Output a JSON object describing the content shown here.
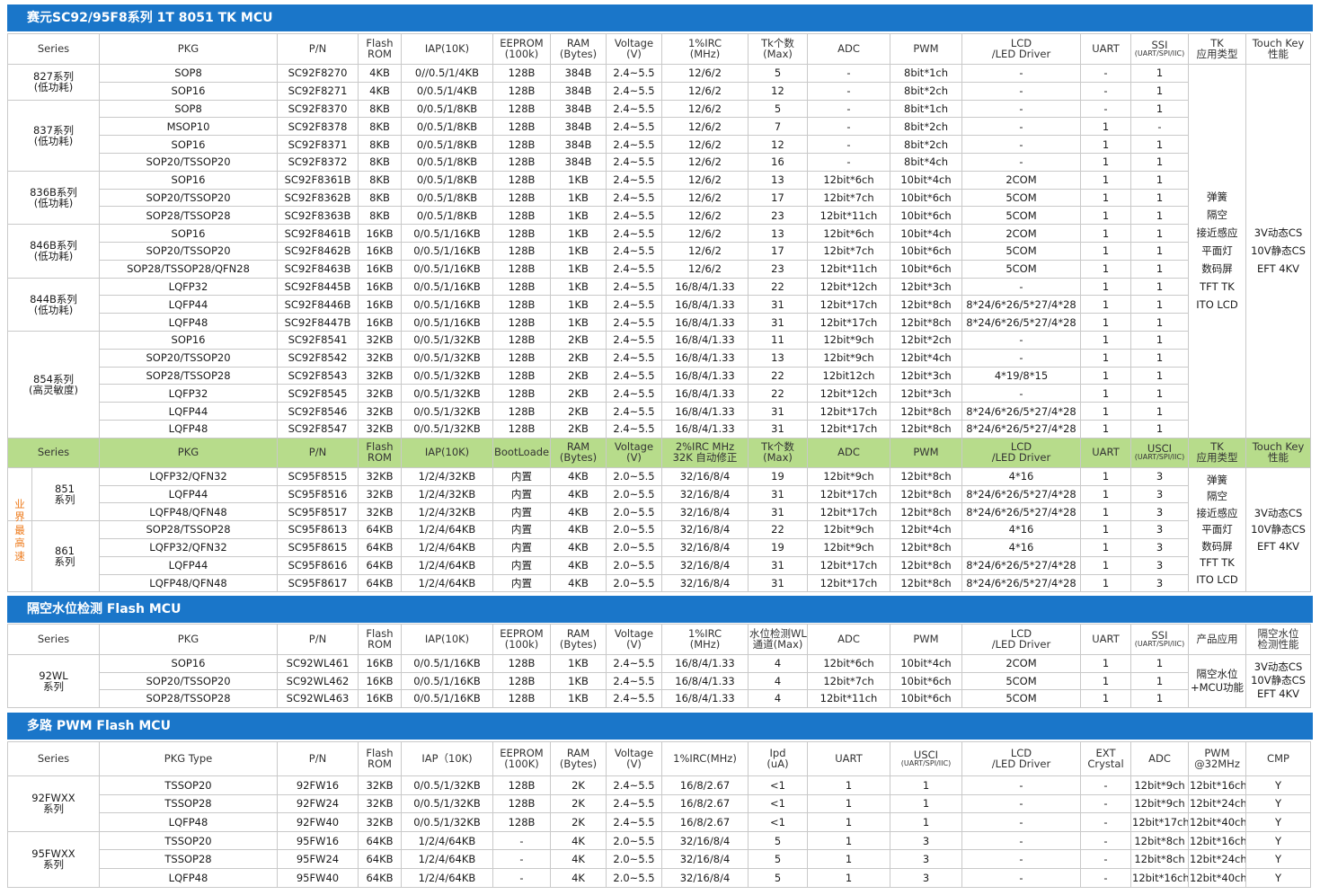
{
  "section1": {
    "title": "赛元SC92/95F8系列 1T 8051 TK MCU",
    "header": [
      "Series",
      "PKG",
      "P/N",
      "Flash|ROM",
      "IAP(10K)",
      "EEPROM|(100k)",
      "RAM|(Bytes)",
      "Voltage|(V)",
      "1%IRC|(MHz)",
      "Tk个数|(Max)",
      "ADC",
      "PWM",
      "LCD|/LED Driver",
      "UART",
      "SSI|(UART/SPI/IIC)",
      "TK|应用类型",
      "Touch Key|性能"
    ],
    "groups": [
      {
        "name": "827系列",
        "sub": "(低功耗)",
        "color": "r",
        "rows": [
          [
            "SOP8",
            "SC92F8270",
            "4KB",
            "0//0.5/1/4KB",
            "128B",
            "384B",
            "2.4~5.5",
            "12/6/2",
            "5",
            "-",
            "8bit*1ch",
            "-",
            "-",
            "1"
          ],
          [
            "SOP16",
            "SC92F8271",
            "4KB",
            "0/0.5/1/4KB",
            "128B",
            "384B",
            "2.4~5.5",
            "12/6/2",
            "12",
            "-",
            "8bit*2ch",
            "-",
            "-",
            "1"
          ]
        ]
      },
      {
        "name": "837系列",
        "sub": "(低功耗)",
        "color": "b",
        "rows": [
          [
            "SOP8",
            "SC92F8370",
            "8KB",
            "0/0.5/1/8KB",
            "128B",
            "384B",
            "2.4~5.5",
            "12/6/2",
            "5",
            "-",
            "8bit*1ch",
            "-",
            "-",
            "1"
          ],
          [
            "MSOP10",
            "SC92F8378",
            "8KB",
            "0/0.5/1/8KB",
            "128B",
            "384B",
            "2.4~5.5",
            "12/6/2",
            "7",
            "-",
            "8bit*2ch",
            "-",
            "1",
            "-"
          ],
          [
            "SOP16",
            "SC92F8371",
            "8KB",
            "0/0.5/1/8KB",
            "128B",
            "384B",
            "2.4~5.5",
            "12/6/2",
            "12",
            "-",
            "8bit*2ch",
            "-",
            "1",
            "1"
          ],
          [
            "SOP20/TSSOP20",
            "SC92F8372",
            "8KB",
            "0/0.5/1/8KB",
            "128B",
            "384B",
            "2.4~5.5",
            "12/6/2",
            "16",
            "-",
            "8bit*4ch",
            "-",
            "1",
            "1"
          ]
        ]
      },
      {
        "name": "836B系列",
        "sub": "(低功耗)",
        "color": "b",
        "rows": [
          [
            "SOP16",
            "SC92F8361B",
            "8KB",
            "0/0.5/1/8KB",
            "128B",
            "1KB",
            "2.4~5.5",
            "12/6/2",
            "13",
            "12bit*6ch",
            "10bit*4ch",
            "2COM",
            "1",
            "1"
          ],
          [
            "SOP20/TSSOP20",
            "SC92F8362B",
            "8KB",
            "0/0.5/1/8KB",
            "128B",
            "1KB",
            "2.4~5.5",
            "12/6/2",
            "17",
            "12bit*7ch",
            "10bit*6ch",
            "5COM",
            "1",
            "1"
          ],
          [
            "SOP28/TSSOP28",
            "SC92F8363B",
            "8KB",
            "0/0.5/1/8KB",
            "128B",
            "1KB",
            "2.4~5.5",
            "12/6/2",
            "23",
            "12bit*11ch",
            "10bit*6ch",
            "5COM",
            "1",
            "1"
          ]
        ]
      },
      {
        "name": "846B系列",
        "sub": "(低功耗)",
        "color": "g",
        "rows": [
          [
            "SOP16",
            "SC92F8461B",
            "16KB",
            "0/0.5/1/16KB",
            "128B",
            "1KB",
            "2.4~5.5",
            "12/6/2",
            "13",
            "12bit*6ch",
            "10bit*4ch",
            "2COM",
            "1",
            "1"
          ],
          [
            "SOP20/TSSOP20",
            "SC92F8462B",
            "16KB",
            "0/0.5/1/16KB",
            "128B",
            "1KB",
            "2.4~5.5",
            "12/6/2",
            "17",
            "12bit*7ch",
            "10bit*6ch",
            "5COM",
            "1",
            "1"
          ],
          [
            "SOP28/TSSOP28/QFN28",
            "SC92F8463B",
            "16KB",
            "0/0.5/1/16KB",
            "128B",
            "1KB",
            "2.4~5.5",
            "12/6/2",
            "23",
            "12bit*11ch",
            "10bit*6ch",
            "5COM",
            "1",
            "1"
          ]
        ]
      },
      {
        "name": "844B系列",
        "sub": "(低功耗)",
        "color": "g",
        "rows": [
          [
            "LQFP32",
            "SC92F8445B",
            "16KB",
            "0/0.5/1/16KB",
            "128B",
            "1KB",
            "2.4~5.5",
            "16/8/4/1.33",
            "22",
            "12bit*12ch",
            "12bit*3ch",
            "-",
            "1",
            "1"
          ],
          [
            "LQFP44",
            "SC92F8446B",
            "16KB",
            "0/0.5/1/16KB",
            "128B",
            "1KB",
            "2.4~5.5",
            "16/8/4/1.33",
            "31",
            "12bit*17ch",
            "12bit*8ch",
            "8*24/6*26/5*27/4*28",
            "1",
            "1"
          ],
          [
            "LQFP48",
            "SC92F8447B",
            "16KB",
            "0/0.5/1/16KB",
            "128B",
            "1KB",
            "2.4~5.5",
            "16/8/4/1.33",
            "31",
            "12bit*17ch",
            "12bit*8ch",
            "8*24/6*26/5*27/4*28",
            "1",
            "1"
          ]
        ]
      },
      {
        "name": "854系列",
        "sub": "(高灵敏度)",
        "color": "o",
        "rows": [
          [
            "SOP16",
            "SC92F8541",
            "32KB",
            "0/0.5/1/32KB",
            "128B",
            "2KB",
            "2.4~5.5",
            "16/8/4/1.33",
            "11",
            "12bit*9ch",
            "12bit*2ch",
            "-",
            "1",
            "1"
          ],
          [
            "SOP20/TSSOP20",
            "SC92F8542",
            "32KB",
            "0/0.5/1/32KB",
            "128B",
            "2KB",
            "2.4~5.5",
            "16/8/4/1.33",
            "13",
            "12bit*9ch",
            "12bit*4ch",
            "-",
            "1",
            "1"
          ],
          [
            "SOP28/TSSOP28",
            "SC92F8543",
            "32KB",
            "0/0.5/1/32KB",
            "128B",
            "2KB",
            "2.4~5.5",
            "16/8/4/1.33",
            "22",
            "12bit12ch",
            "12bit*3ch",
            "4*19/8*15",
            "1",
            "1"
          ],
          [
            "LQFP32",
            "SC92F8545",
            "32KB",
            "0/0.5/1/32KB",
            "128B",
            "2KB",
            "2.4~5.5",
            "16/8/4/1.33",
            "22",
            "12bit*12ch",
            "12bit*3ch",
            "-",
            "1",
            "1"
          ],
          [
            "LQFP44",
            "SC92F8546",
            "32KB",
            "0/0.5/1/32KB",
            "128B",
            "2KB",
            "2.4~5.5",
            "16/8/4/1.33",
            "31",
            "12bit*17ch",
            "12bit*8ch",
            "8*24/6*26/5*27/4*28",
            "1",
            "1"
          ],
          [
            "LQFP48",
            "SC92F8547",
            "32KB",
            "0/0.5/1/32KB",
            "128B",
            "2KB",
            "2.4~5.5",
            "16/8/4/1.33",
            "31",
            "12bit*17ch",
            "12bit*8ch",
            "8*24/6*26/5*27/4*28",
            "1",
            "1"
          ]
        ]
      }
    ],
    "tk_type": [
      "弹簧",
      "隔空",
      "接近感应",
      "平面灯",
      "数码屏",
      "TFT TK",
      "ITO LCD"
    ],
    "tk_perf": [
      "3V动态CS",
      "10V静态CS",
      "EFT 4KV"
    ]
  },
  "section2": {
    "header": [
      "Series",
      "PKG",
      "P/N",
      "Flash|ROM",
      "IAP(10K)",
      "BootLoader",
      "RAM|(Bytes)",
      "Voltage|(V)",
      "2%IRC MHz|32K 自动修正",
      "Tk个数|(Max)",
      "ADC",
      "PWM",
      "LCD|/LED Driver",
      "UART",
      "USCI|(UART/SPI/IIC)",
      "TK|应用类型",
      "Touch Key|性能"
    ],
    "side": [
      "业",
      "界",
      "最",
      "高",
      "速"
    ],
    "groups": [
      {
        "name": "851",
        "sub": "系列",
        "color": "o",
        "rows": [
          [
            "LQFP32/QFN32",
            "SC95F8515",
            "32KB",
            "1/2/4/32KB",
            "内置",
            "4KB",
            "2.0~5.5",
            "32/16/8/4",
            "19",
            "12bit*9ch",
            "12bit*8ch",
            "4*16",
            "1",
            "3"
          ],
          [
            "LQFP44",
            "SC95F8516",
            "32KB",
            "1/2/4/32KB",
            "内置",
            "4KB",
            "2.0~5.5",
            "32/16/8/4",
            "31",
            "12bit*17ch",
            "12bit*8ch",
            "8*24/6*26/5*27/4*28",
            "1",
            "3"
          ],
          [
            "LQFP48/QFN48",
            "SC95F8517",
            "32KB",
            "1/2/4/32KB",
            "内置",
            "4KB",
            "2.0~5.5",
            "32/16/8/4",
            "31",
            "12bit*17ch",
            "12bit*8ch",
            "8*24/6*26/5*27/4*28",
            "1",
            "3"
          ]
        ]
      },
      {
        "name": "861",
        "sub": "系列",
        "color": "p",
        "rows": [
          [
            "SOP28/TSSOP28",
            "SC95F8613",
            "64KB",
            "1/2/4/64KB",
            "内置",
            "4KB",
            "2.0~5.5",
            "32/16/8/4",
            "22",
            "12bit*9ch",
            "12bit*4ch",
            "4*16",
            "1",
            "3"
          ],
          [
            "LQFP32/QFN32",
            "SC95F8615",
            "64KB",
            "1/2/4/64KB",
            "内置",
            "4KB",
            "2.0~5.5",
            "32/16/8/4",
            "19",
            "12bit*9ch",
            "12bit*8ch",
            "4*16",
            "1",
            "3"
          ],
          [
            "LQFP44",
            "SC95F8616",
            "64KB",
            "1/2/4/64KB",
            "内置",
            "4KB",
            "2.0~5.5",
            "32/16/8/4",
            "31",
            "12bit*17ch",
            "12bit*8ch",
            "8*24/6*26/5*27/4*28",
            "1",
            "3"
          ],
          [
            "LQFP48/QFN48",
            "SC95F8617",
            "64KB",
            "1/2/4/64KB",
            "内置",
            "4KB",
            "2.0~5.5",
            "32/16/8/4",
            "31",
            "12bit*17ch",
            "12bit*8ch",
            "8*24/6*26/5*27/4*28",
            "1",
            "3"
          ]
        ]
      }
    ],
    "tk_type": [
      "弹簧",
      "隔空",
      "接近感应",
      "平面灯",
      "数码屏",
      "TFT TK",
      "ITO LCD"
    ],
    "tk_perf": [
      "3V动态CS",
      "10V静态CS",
      "EFT 4KV"
    ]
  },
  "section3": {
    "title": "隔空水位检测 Flash MCU",
    "header": [
      "Series",
      "PKG",
      "P/N",
      "Flash|ROM",
      "IAP(10K)",
      "EEPROM|(100k)",
      "RAM|(Bytes)",
      "Voltage|(V)",
      "1%IRC|(MHz)",
      "水位检测WL|通道(Max)",
      "ADC",
      "PWM",
      "LCD|/LED Driver",
      "UART",
      "SSI|(UART/SPI/IIC)",
      "产品应用",
      "隔空水位|检测性能"
    ],
    "groups": [
      {
        "name": "92WL",
        "sub": "系列",
        "color": "g",
        "rows": [
          [
            "SOP16",
            "SC92WL461",
            "16KB",
            "0/0.5/1/16KB",
            "128B",
            "1KB",
            "2.4~5.5",
            "16/8/4/1.33",
            "4",
            "12bit*6ch",
            "10bit*4ch",
            "2COM",
            "1",
            "1"
          ],
          [
            "SOP20/TSSOP20",
            "SC92WL462",
            "16KB",
            "0/0.5/1/16KB",
            "128B",
            "1KB",
            "2.4~5.5",
            "16/8/4/1.33",
            "4",
            "12bit*7ch",
            "10bit*6ch",
            "5COM",
            "1",
            "1"
          ],
          [
            "SOP28/TSSOP28",
            "SC92WL463",
            "16KB",
            "0/0.5/1/16KB",
            "128B",
            "1KB",
            "2.4~5.5",
            "16/8/4/1.33",
            "4",
            "12bit*11ch",
            "10bit*6ch",
            "5COM",
            "1",
            "1"
          ]
        ]
      }
    ],
    "app": [
      "隔空水位",
      "+MCU功能"
    ],
    "perf": [
      "3V动态CS",
      "10V静态CS",
      "EFT 4KV"
    ]
  },
  "section4": {
    "title": "多路 PWM Flash MCU",
    "header": [
      "Series",
      "PKG Type",
      "P/N",
      "Flash|ROM",
      "IAP（10K)",
      "EEPROM|(100K)",
      "RAM|(Bytes)",
      "Voltage|(V)",
      "1%IRC(MHz)",
      "Ipd|(uA)",
      "UART",
      "USCI|(UART/SPI/IIC)",
      "LCD|/LED Driver",
      "EXT|Crystal",
      "ADC",
      "PWM|@32MHz",
      "CMP"
    ],
    "groups": [
      {
        "name": "92FWXX",
        "sub": "系列",
        "color": "o",
        "rows": [
          [
            "TSSOP20",
            "92FW16",
            "32KB",
            "0/0.5/1/32KB",
            "128B",
            "2K",
            "2.4~5.5",
            "16/8/2.67",
            "<1",
            "1",
            "1",
            "-",
            "-",
            "12bit*9ch",
            "12bit*16ch",
            "Y"
          ],
          [
            "TSSOP28",
            "92FW24",
            "32KB",
            "0/0.5/1/32KB",
            "128B",
            "2K",
            "2.4~5.5",
            "16/8/2.67",
            "<1",
            "1",
            "1",
            "-",
            "-",
            "12bit*9ch",
            "12bit*24ch",
            "Y"
          ],
          [
            "LQFP48",
            "92FW40",
            "32KB",
            "0/0.5/1/32KB",
            "128B",
            "2K",
            "2.4~5.5",
            "16/8/2.67",
            "<1",
            "1",
            "1",
            "-",
            "-",
            "12bit*17ch",
            "12bit*40ch",
            "Y"
          ]
        ]
      },
      {
        "name": "95FWXX",
        "sub": "系列",
        "color": "p",
        "rows": [
          [
            "TSSOP20",
            "95FW16",
            "64KB",
            "1/2/4/64KB",
            "-",
            "4K",
            "2.0~5.5",
            "32/16/8/4",
            "5",
            "1",
            "3",
            "-",
            "-",
            "12bit*8ch",
            "12bit*16ch",
            "Y"
          ],
          [
            "TSSOP28",
            "95FW24",
            "64KB",
            "1/2/4/64KB",
            "-",
            "4K",
            "2.0~5.5",
            "32/16/8/4",
            "5",
            "1",
            "3",
            "-",
            "-",
            "12bit*8ch",
            "12bit*24ch",
            "Y"
          ],
          [
            "LQFP48",
            "95FW40",
            "64KB",
            "1/2/4/64KB",
            "-",
            "4K",
            "2.0~5.5",
            "32/16/8/4",
            "5",
            "1",
            "3",
            "-",
            "-",
            "12bit*16ch",
            "12bit*40ch",
            "Y"
          ]
        ]
      }
    ]
  }
}
